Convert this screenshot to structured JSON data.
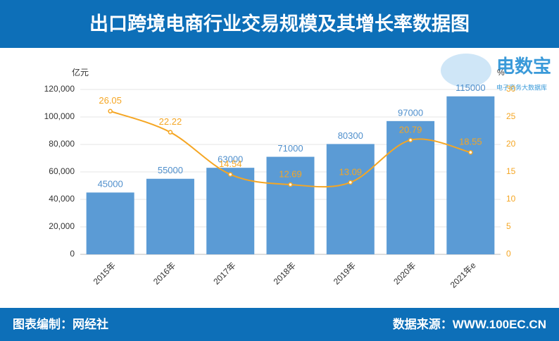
{
  "header": {
    "title": "出口跨境电商行业交易规模及其增长率数据图"
  },
  "logo": {
    "name": "电数宝",
    "tagline": "电子商务大数据库"
  },
  "footer": {
    "left": "图表编制：网经社",
    "right": "数据来源：WWW.100EC.CN"
  },
  "chart_data": {
    "type": "combo",
    "y_label": "亿元",
    "y2_label": "%",
    "categories": [
      "2015年",
      "2016年",
      "2017年",
      "2018年",
      "2019年",
      "2020年",
      "2021年e"
    ],
    "series": [
      {
        "type": "bar",
        "color": "#5b9bd5",
        "values": [
          45000,
          55000,
          63000,
          71000,
          80300,
          97000,
          115000
        ]
      },
      {
        "type": "line",
        "axis": "y2",
        "color": "#f5a623",
        "values": [
          26.05,
          22.22,
          14.54,
          12.69,
          13.09,
          20.79,
          18.55
        ]
      }
    ],
    "ylim": [
      0,
      120000
    ],
    "yticks": [
      0,
      {
        "value": 20000,
        "label": "20,000"
      },
      {
        "value": 40000,
        "label": "40,000"
      },
      {
        "value": 60000,
        "label": "60,000"
      },
      {
        "value": 80000,
        "label": "80,000"
      },
      {
        "value": 100000,
        "label": "100,000"
      },
      {
        "value": 120000,
        "label": "120,000"
      }
    ],
    "y2lim": [
      0,
      30
    ],
    "y2ticks": [
      0,
      5,
      10,
      15,
      20,
      25,
      30
    ],
    "grid": true
  }
}
